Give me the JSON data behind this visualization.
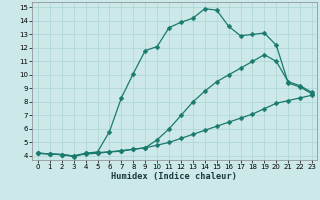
{
  "xlabel": "Humidex (Indice chaleur)",
  "bg_color": "#cde8e8",
  "line_color": "#1a7a6e",
  "grid_color": "#aad4d4",
  "xlim": [
    -0.5,
    23.4
  ],
  "ylim": [
    3.7,
    15.4
  ],
  "xticks": [
    0,
    1,
    2,
    3,
    4,
    5,
    6,
    7,
    8,
    9,
    10,
    11,
    12,
    13,
    14,
    15,
    16,
    17,
    18,
    19,
    20,
    21,
    22,
    23
  ],
  "yticks": [
    4,
    5,
    6,
    7,
    8,
    9,
    10,
    11,
    12,
    13,
    14,
    15
  ],
  "line_top": {
    "x": [
      0,
      1,
      2,
      3,
      4,
      5,
      6,
      7,
      8,
      9,
      10,
      11,
      12,
      13,
      14,
      15,
      16,
      17,
      18,
      19,
      20,
      21,
      22,
      23
    ],
    "y": [
      4.2,
      4.15,
      4.1,
      3.95,
      4.2,
      4.3,
      5.8,
      8.3,
      10.1,
      11.8,
      12.1,
      13.5,
      13.9,
      14.2,
      14.9,
      14.8,
      13.6,
      12.9,
      13.0,
      13.1,
      12.2,
      9.4,
      9.1,
      8.6
    ]
  },
  "line_mid": {
    "x": [
      0,
      1,
      2,
      3,
      4,
      5,
      6,
      7,
      8,
      9,
      10,
      11,
      12,
      13,
      14,
      15,
      16,
      17,
      18,
      19,
      20,
      21,
      22,
      23
    ],
    "y": [
      4.2,
      4.15,
      4.1,
      4.0,
      4.2,
      4.25,
      4.3,
      4.4,
      4.5,
      4.6,
      5.2,
      6.0,
      7.0,
      8.0,
      8.8,
      9.5,
      10.0,
      10.5,
      11.0,
      11.5,
      11.0,
      9.5,
      9.2,
      8.7
    ]
  },
  "line_bot": {
    "x": [
      0,
      1,
      2,
      3,
      4,
      5,
      6,
      7,
      8,
      9,
      10,
      11,
      12,
      13,
      14,
      15,
      16,
      17,
      18,
      19,
      20,
      21,
      22,
      23
    ],
    "y": [
      4.2,
      4.15,
      4.1,
      4.0,
      4.15,
      4.2,
      4.3,
      4.35,
      4.5,
      4.6,
      4.8,
      5.0,
      5.3,
      5.6,
      5.9,
      6.2,
      6.5,
      6.8,
      7.1,
      7.5,
      7.9,
      8.1,
      8.3,
      8.5
    ]
  }
}
